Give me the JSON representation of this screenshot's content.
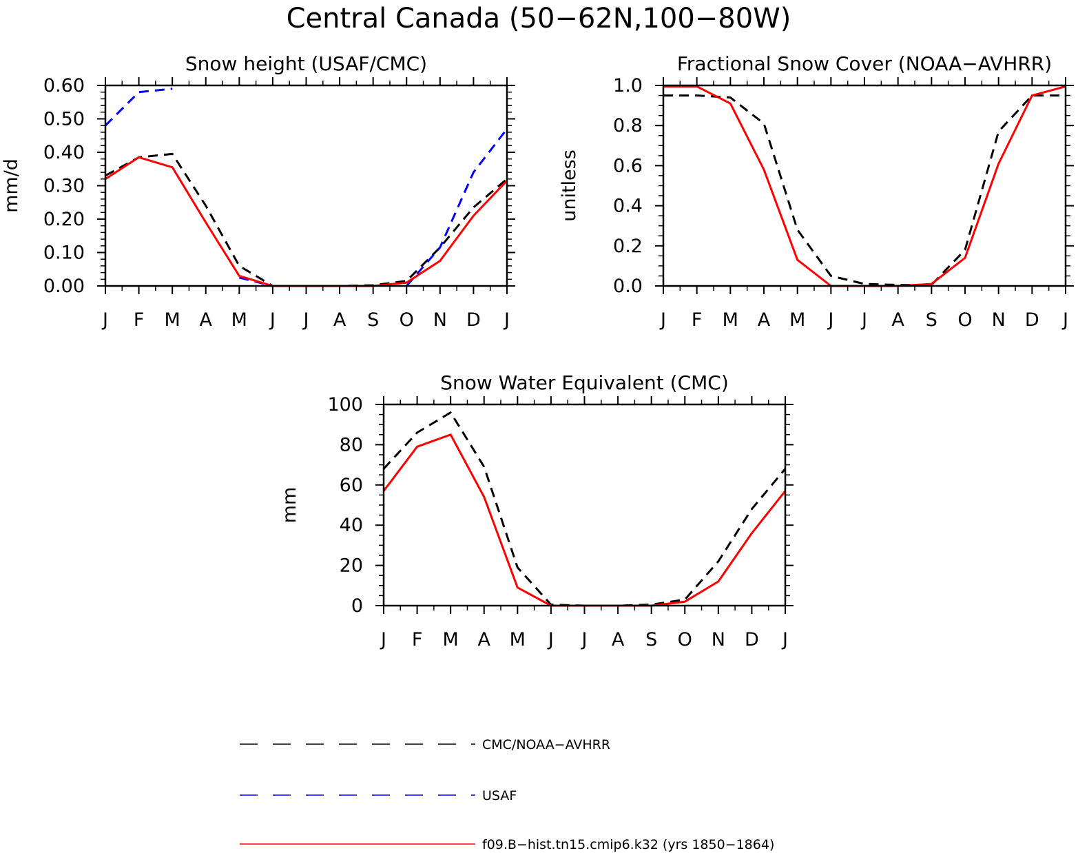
{
  "figure": {
    "title": "Central Canada (50−62N,100−80W)"
  },
  "legend": [
    {
      "label": "CMC/NOAA−AVHRR",
      "color": "#000000",
      "style": "dashed"
    },
    {
      "label": "USAF",
      "color": "#0000ff",
      "style": "dashed"
    },
    {
      "label": "f09.B−hist.tn15.cmip6.k32 (yrs 1850−1864)",
      "color": "#ff0000",
      "style": "solid"
    }
  ],
  "chart_data": [
    {
      "type": "line",
      "title": "Snow height (USAF/CMC)",
      "xlabel": "",
      "ylabel": "mm/d",
      "categories": [
        "J",
        "F",
        "M",
        "A",
        "M",
        "J",
        "J",
        "A",
        "S",
        "O",
        "N",
        "D",
        "J"
      ],
      "ylim": [
        0,
        0.6
      ],
      "yticks": [
        "0.00",
        "0.10",
        "0.20",
        "0.30",
        "0.40",
        "0.50",
        "0.60"
      ],
      "series": [
        {
          "name": "CMC/NOAA−AVHRR",
          "color": "#000000",
          "style": "dashed",
          "values": [
            0.33,
            0.385,
            0.395,
            0.24,
            0.06,
            0.0,
            0.0,
            0.0,
            0.002,
            0.015,
            0.115,
            0.235,
            0.32
          ]
        },
        {
          "name": "USAF",
          "color": "#0000ff",
          "style": "dashed",
          "values": [
            0.48,
            0.58,
            0.59,
            null,
            0.025,
            0.0,
            null,
            null,
            null,
            0.0,
            0.115,
            0.34,
            0.47
          ]
        },
        {
          "name": "f09.B−hist.tn15.cmip6.k32 (yrs 1850−1864)",
          "color": "#ff0000",
          "style": "solid",
          "values": [
            0.32,
            0.385,
            0.355,
            0.19,
            0.03,
            0.0,
            0.0,
            0.0,
            0.0,
            0.01,
            0.075,
            0.21,
            0.315
          ]
        }
      ]
    },
    {
      "type": "line",
      "title": "Fractional Snow Cover (NOAA−AVHRR)",
      "xlabel": "",
      "ylabel": "unitless",
      "categories": [
        "J",
        "F",
        "M",
        "A",
        "M",
        "J",
        "J",
        "A",
        "S",
        "O",
        "N",
        "D",
        "J"
      ],
      "ylim": [
        0,
        1.0
      ],
      "yticks": [
        "0.0",
        "0.2",
        "0.4",
        "0.6",
        "0.8",
        "1.0"
      ],
      "series": [
        {
          "name": "CMC/NOAA−AVHRR",
          "color": "#000000",
          "style": "dashed",
          "values": [
            0.95,
            0.95,
            0.94,
            0.81,
            0.28,
            0.05,
            0.01,
            0.005,
            0.005,
            0.18,
            0.77,
            0.95,
            0.95
          ]
        },
        {
          "name": "f09.B−hist.tn15.cmip6.k32 (yrs 1850−1864)",
          "color": "#ff0000",
          "style": "solid",
          "values": [
            0.995,
            0.995,
            0.91,
            0.58,
            0.13,
            0.0,
            0.0,
            0.0,
            0.01,
            0.14,
            0.61,
            0.95,
            0.995
          ]
        }
      ]
    },
    {
      "type": "line",
      "title": "Snow Water Equivalent (CMC)",
      "xlabel": "",
      "ylabel": "mm",
      "categories": [
        "J",
        "F",
        "M",
        "A",
        "M",
        "J",
        "J",
        "A",
        "S",
        "O",
        "N",
        "D",
        "J"
      ],
      "ylim": [
        0,
        100
      ],
      "yticks": [
        "0",
        "20",
        "40",
        "60",
        "80",
        "100"
      ],
      "series": [
        {
          "name": "CMC/NOAA−AVHRR",
          "color": "#000000",
          "style": "dashed",
          "values": [
            68,
            86,
            96,
            69,
            19,
            0.5,
            0,
            0,
            0.5,
            3,
            22,
            48,
            68
          ]
        },
        {
          "name": "f09.B−hist.tn15.cmip6.k32 (yrs 1850−1864)",
          "color": "#ff0000",
          "style": "solid",
          "values": [
            57,
            79,
            85,
            54,
            9,
            0,
            0,
            0,
            0,
            2,
            12,
            36,
            57
          ]
        }
      ]
    }
  ]
}
